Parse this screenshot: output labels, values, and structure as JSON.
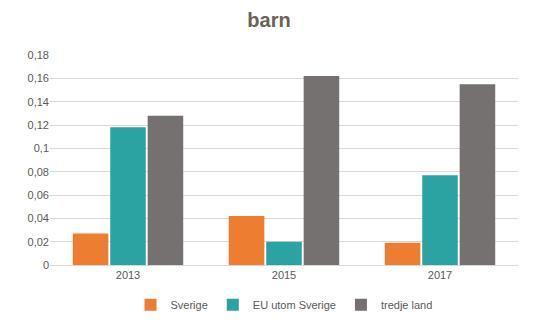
{
  "chart_data": {
    "type": "bar",
    "title": "barn",
    "categories": [
      "2013",
      "2015",
      "2017"
    ],
    "series": [
      {
        "name": "Sverige",
        "color": "#ed7d31",
        "values": [
          0.027,
          0.042,
          0.019
        ]
      },
      {
        "name": "EU utom Sverige",
        "color": "#2ba3a3",
        "values": [
          0.118,
          0.02,
          0.077
        ]
      },
      {
        "name": "tredje land",
        "color": "#767171",
        "values": [
          0.128,
          0.162,
          0.155
        ]
      }
    ],
    "ylim": [
      0,
      0.18
    ],
    "yticks": [
      0,
      {
        "value": 0.02,
        "label": "0,02"
      },
      {
        "value": 0.04,
        "label": "0,04"
      },
      {
        "value": 0.06,
        "label": "0,06"
      },
      {
        "value": 0.08,
        "label": "0,08"
      },
      {
        "value": 0.1,
        "label": "0,1"
      },
      {
        "value": 0.12,
        "label": "0,12"
      },
      {
        "value": 0.14,
        "label": "0,14"
      },
      {
        "value": 0.16,
        "label": "0,16"
      },
      {
        "value": 0.18,
        "label": "0,18"
      }
    ],
    "grid": true,
    "legend": "bottom"
  }
}
